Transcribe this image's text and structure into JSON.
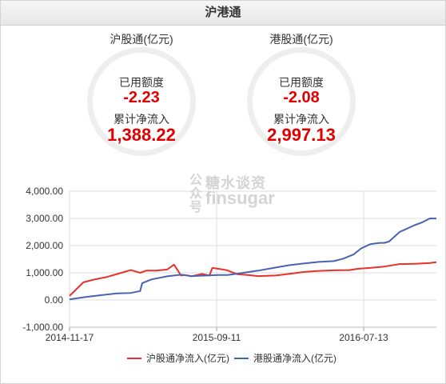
{
  "panel": {
    "title": "沪港通"
  },
  "gauges": [
    {
      "title": "沪股通(亿元)",
      "used_label": "已用额度",
      "used_value": "-2.23",
      "cum_label": "累计净流入",
      "cum_value": "1,388.22"
    },
    {
      "title": "港股通(亿元)",
      "used_label": "已用额度",
      "used_value": "-2.08",
      "cum_label": "累计净流入",
      "cum_value": "2,997.13"
    }
  ],
  "watermark": {
    "vertical": "公众号",
    "line1": "糖水谈资",
    "line2": "finsugar"
  },
  "colors": {
    "sh": "#e8312b",
    "hk": "#4a63b0",
    "value_red": "#e00000"
  },
  "chart_data": {
    "type": "line",
    "x_ticks": [
      "2014-11-17",
      "2015-09-11",
      "2016-07-13"
    ],
    "y_ticks": [
      "4,000.00",
      "3,000.00",
      "2,000.00",
      "1,000.00",
      "0.00",
      "-1,000.00"
    ],
    "ylim": [
      -1000,
      4000
    ],
    "grid": true,
    "legend_position": "bottom",
    "series": [
      {
        "name": "沪股通净流入(亿元)",
        "color": "#e8312b",
        "x": [
          "2014-11-17",
          "2014-12-01",
          "2014-12-15",
          "2015-01-05",
          "2015-02-01",
          "2015-03-01",
          "2015-03-20",
          "2015-04-08",
          "2015-04-20",
          "2015-05-10",
          "2015-06-01",
          "2015-06-15",
          "2015-06-29",
          "2015-07-06",
          "2015-07-20",
          "2015-08-10",
          "2015-08-25",
          "2015-08-31",
          "2015-09-11",
          "2015-09-28",
          "2015-10-20",
          "2015-11-10",
          "2015-12-01",
          "2016-01-05",
          "2016-02-01",
          "2016-03-01",
          "2016-04-01",
          "2016-05-01",
          "2016-06-01",
          "2016-06-20",
          "2016-07-13",
          "2016-08-10",
          "2016-09-10",
          "2016-10-10",
          "2016-11-10",
          "2016-11-23"
        ],
        "y": [
          150,
          400,
          650,
          750,
          850,
          1000,
          1100,
          1000,
          1080,
          1080,
          1120,
          1300,
          900,
          920,
          870,
          960,
          900,
          1180,
          1150,
          1100,
          950,
          920,
          880,
          900,
          960,
          1030,
          1070,
          1090,
          1100,
          1150,
          1180,
          1230,
          1320,
          1330,
          1360,
          1390
        ]
      },
      {
        "name": "港股通净流入(亿元)",
        "color": "#4a63b0",
        "x": [
          "2014-11-17",
          "2014-12-15",
          "2015-01-20",
          "2015-02-20",
          "2015-03-20",
          "2015-04-08",
          "2015-04-12",
          "2015-05-01",
          "2015-06-01",
          "2015-06-29",
          "2015-07-20",
          "2015-08-20",
          "2015-09-11",
          "2015-10-01",
          "2015-11-01",
          "2015-12-01",
          "2016-01-01",
          "2016-02-01",
          "2016-03-01",
          "2016-04-01",
          "2016-05-01",
          "2016-05-20",
          "2016-06-10",
          "2016-06-25",
          "2016-07-13",
          "2016-08-01",
          "2016-08-10",
          "2016-08-20",
          "2016-09-10",
          "2016-10-10",
          "2016-10-25",
          "2016-11-10",
          "2016-11-23"
        ],
        "y": [
          20,
          100,
          180,
          240,
          260,
          330,
          620,
          760,
          870,
          930,
          880,
          900,
          920,
          920,
          1000,
          1080,
          1180,
          1280,
          1340,
          1400,
          1430,
          1520,
          1680,
          1900,
          2050,
          2100,
          2100,
          2150,
          2500,
          2750,
          2850,
          3000,
          2997
        ]
      }
    ]
  }
}
